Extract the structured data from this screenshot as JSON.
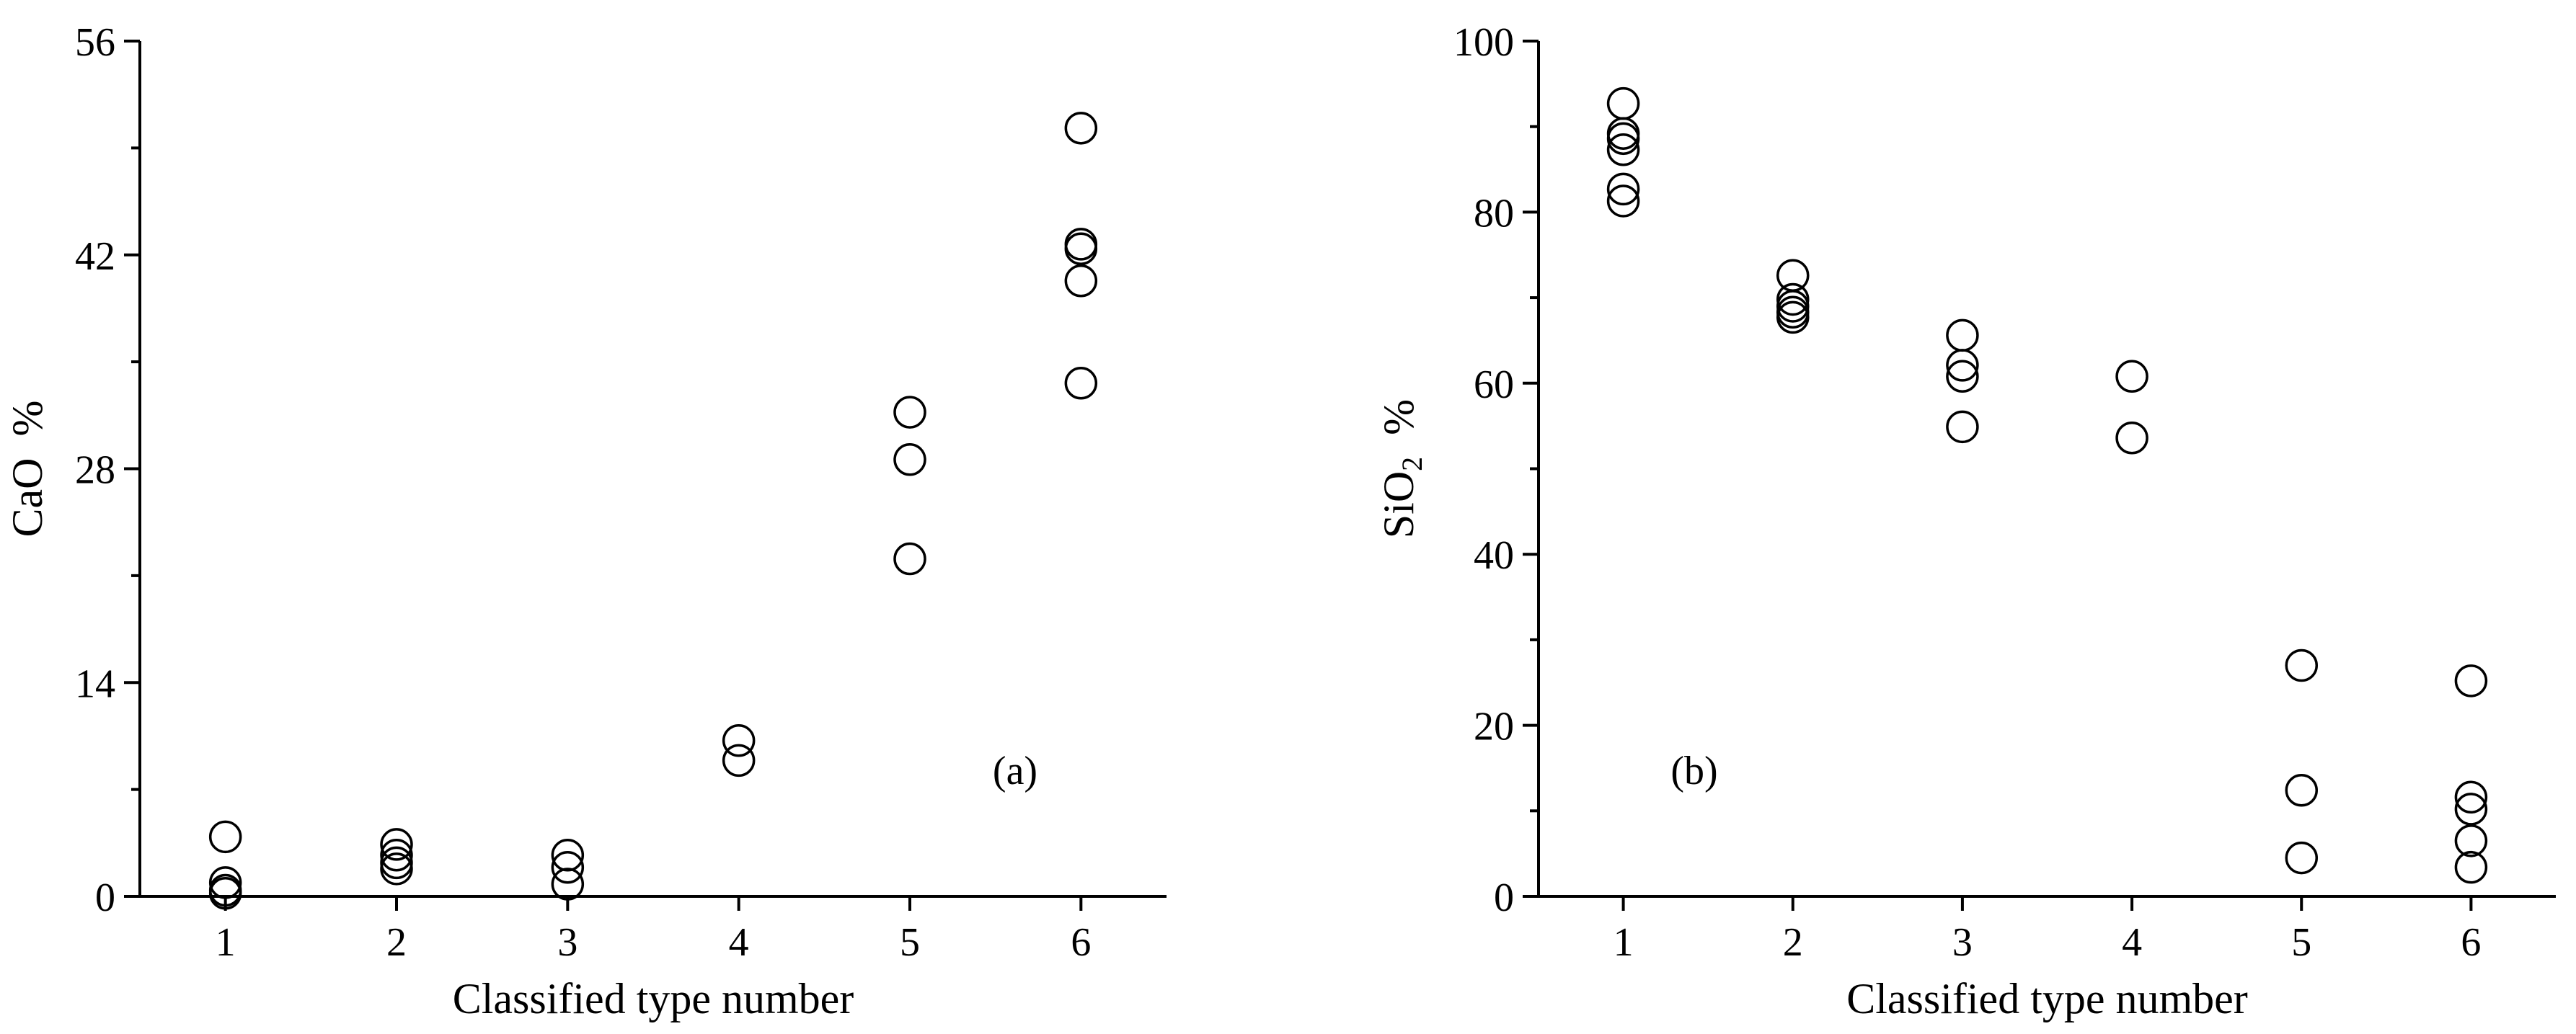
{
  "chart_data": [
    {
      "type": "scatter",
      "panel_label": "(a)",
      "xlabel": "Classified type number",
      "ylabel": "CaO",
      "ylabel_unit": "%",
      "ylabel_sub": "",
      "xlim": [
        0.5,
        6.5
      ],
      "ylim": [
        0,
        56
      ],
      "xticks": [
        "1",
        "2",
        "3",
        "4",
        "5",
        "6"
      ],
      "yticks": [
        "0",
        "14",
        "28",
        "42",
        "56"
      ],
      "grid": false,
      "marker": "open-circle",
      "points": [
        {
          "x": 1,
          "y": 3.9
        },
        {
          "x": 1,
          "y": 0.9
        },
        {
          "x": 1,
          "y": 0.4
        },
        {
          "x": 1,
          "y": 0.2
        },
        {
          "x": 2,
          "y": 3.4
        },
        {
          "x": 2,
          "y": 2.7
        },
        {
          "x": 2,
          "y": 2.2
        },
        {
          "x": 2,
          "y": 1.8
        },
        {
          "x": 3,
          "y": 2.7
        },
        {
          "x": 3,
          "y": 1.9
        },
        {
          "x": 3,
          "y": 0.8
        },
        {
          "x": 4,
          "y": 10.2
        },
        {
          "x": 4,
          "y": 8.9
        },
        {
          "x": 5,
          "y": 31.7
        },
        {
          "x": 5,
          "y": 28.6
        },
        {
          "x": 5,
          "y": 22.1
        },
        {
          "x": 6,
          "y": 50.3
        },
        {
          "x": 6,
          "y": 42.7
        },
        {
          "x": 6,
          "y": 42.4
        },
        {
          "x": 6,
          "y": 40.3
        },
        {
          "x": 6,
          "y": 33.6
        }
      ]
    },
    {
      "type": "scatter",
      "panel_label": "(b)",
      "xlabel": "Classified type number",
      "ylabel": "SiO",
      "ylabel_unit": "%",
      "ylabel_sub": "2",
      "xlim": [
        0.5,
        6.5
      ],
      "ylim": [
        0,
        100
      ],
      "xticks": [
        "1",
        "2",
        "3",
        "4",
        "5",
        "6"
      ],
      "yticks": [
        "0",
        "20",
        "40",
        "60",
        "80",
        "100"
      ],
      "grid": false,
      "marker": "open-circle",
      "points": [
        {
          "x": 1,
          "y": 92.7
        },
        {
          "x": 1,
          "y": 89.2
        },
        {
          "x": 1,
          "y": 88.6
        },
        {
          "x": 1,
          "y": 87.3
        },
        {
          "x": 1,
          "y": 82.7
        },
        {
          "x": 1,
          "y": 81.3
        },
        {
          "x": 2,
          "y": 72.6
        },
        {
          "x": 2,
          "y": 69.8
        },
        {
          "x": 2,
          "y": 69.0
        },
        {
          "x": 2,
          "y": 68.3
        },
        {
          "x": 2,
          "y": 67.7
        },
        {
          "x": 3,
          "y": 65.6
        },
        {
          "x": 3,
          "y": 62.1
        },
        {
          "x": 3,
          "y": 60.8
        },
        {
          "x": 3,
          "y": 54.9
        },
        {
          "x": 4,
          "y": 60.8
        },
        {
          "x": 4,
          "y": 53.6
        },
        {
          "x": 5,
          "y": 27.0
        },
        {
          "x": 5,
          "y": 12.4
        },
        {
          "x": 5,
          "y": 4.5
        },
        {
          "x": 6,
          "y": 25.2
        },
        {
          "x": 6,
          "y": 11.6
        },
        {
          "x": 6,
          "y": 10.2
        },
        {
          "x": 6,
          "y": 6.5
        },
        {
          "x": 6,
          "y": 3.4
        }
      ]
    }
  ]
}
